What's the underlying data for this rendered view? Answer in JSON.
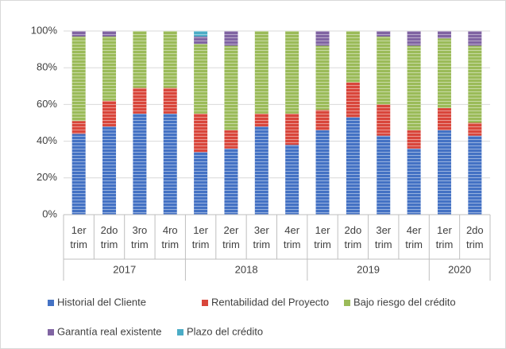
{
  "chart_data": {
    "type": "stacked_bar",
    "groups": [
      {
        "name": "2017",
        "categories": [
          "1er trim",
          "2do trim",
          "3ro trim",
          "4ro trim"
        ]
      },
      {
        "name": "2018",
        "categories": [
          "1er trim",
          "2er trim",
          "3er trim",
          "4er trim"
        ]
      },
      {
        "name": "2019",
        "categories": [
          "1er trim",
          "2do trim",
          "3er trim",
          "4er trim"
        ]
      },
      {
        "name": "2020",
        "categories": [
          "1er trim",
          "2do trim"
        ]
      }
    ],
    "series": [
      {
        "name": "Historial del Cliente",
        "color": "#4472c4",
        "values": [
          44,
          48,
          55,
          55,
          34,
          36,
          48,
          38,
          46,
          53,
          43,
          36,
          46,
          43
        ]
      },
      {
        "name": "Rentabilidad del Proyecto",
        "color": "#d9463b",
        "values": [
          7,
          14,
          14,
          14,
          21,
          10,
          7,
          17,
          11,
          19,
          17,
          10,
          12,
          7
        ]
      },
      {
        "name": "Bajo riesgo del crédito",
        "color": "#9bbb59",
        "values": [
          46,
          35,
          31,
          31,
          38,
          46,
          45,
          45,
          35,
          28,
          37,
          46,
          38,
          42
        ]
      },
      {
        "name": "Garantía real existente",
        "color": "#8064a2",
        "values": [
          3,
          3,
          0,
          0,
          4,
          8,
          0,
          0,
          8,
          0,
          3,
          8,
          4,
          8
        ]
      },
      {
        "name": "Plazo del crédito",
        "color": "#4bacc6",
        "values": [
          0,
          0,
          0,
          0,
          3,
          0,
          0,
          0,
          0,
          0,
          0,
          0,
          0,
          0
        ]
      }
    ],
    "ylim": [
      0,
      100
    ],
    "yticks": [
      {
        "value": 0,
        "label": "0%"
      },
      {
        "value": 20,
        "label": "20%"
      },
      {
        "value": 40,
        "label": "40%"
      },
      {
        "value": 60,
        "label": "60%"
      },
      {
        "value": 80,
        "label": "80%"
      },
      {
        "value": 100,
        "label": "100%"
      }
    ],
    "grid": true,
    "legend": "bottom"
  }
}
